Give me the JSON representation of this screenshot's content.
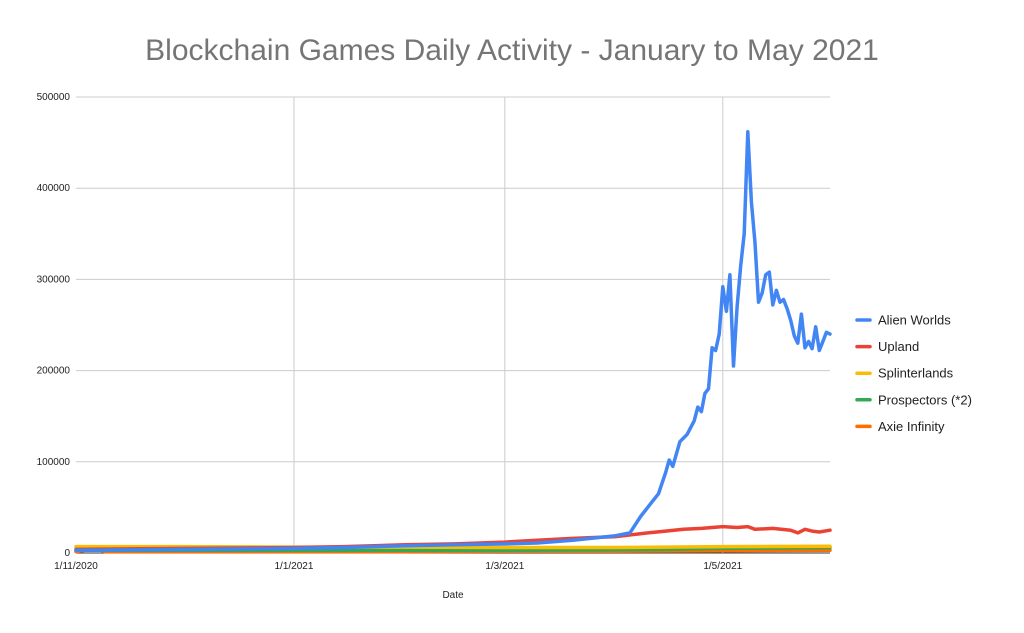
{
  "chart_data": {
    "type": "line",
    "title": "Blockchain Games Daily Activity - January to May 2021",
    "xlabel": "Date",
    "ylabel": "",
    "x_ticks": [
      "1/11/2020",
      "1/1/2021",
      "1/3/2021",
      "1/5/2021"
    ],
    "x_range": [
      "2020-11-01",
      "2021-05-31"
    ],
    "ylim": [
      0,
      500000
    ],
    "y_ticks": [
      0,
      100000,
      200000,
      300000,
      400000,
      500000
    ],
    "grid": true,
    "legend_position": "right",
    "series": [
      {
        "name": "Alien Worlds",
        "color": "#4285f4",
        "points": [
          [
            "2020-11-01",
            3000
          ],
          [
            "2020-12-01",
            4000
          ],
          [
            "2021-01-01",
            5000
          ],
          [
            "2021-01-15",
            6000
          ],
          [
            "2021-02-01",
            8000
          ],
          [
            "2021-02-15",
            9000
          ],
          [
            "2021-03-01",
            10000
          ],
          [
            "2021-03-10",
            11000
          ],
          [
            "2021-03-20",
            14000
          ],
          [
            "2021-04-01",
            19000
          ],
          [
            "2021-04-05",
            22000
          ],
          [
            "2021-04-08",
            40000
          ],
          [
            "2021-04-11",
            55000
          ],
          [
            "2021-04-13",
            65000
          ],
          [
            "2021-04-15",
            88000
          ],
          [
            "2021-04-16",
            102000
          ],
          [
            "2021-04-17",
            95000
          ],
          [
            "2021-04-19",
            122000
          ],
          [
            "2021-04-21",
            130000
          ],
          [
            "2021-04-23",
            145000
          ],
          [
            "2021-04-24",
            160000
          ],
          [
            "2021-04-25",
            155000
          ],
          [
            "2021-04-26",
            175000
          ],
          [
            "2021-04-27",
            180000
          ],
          [
            "2021-04-28",
            225000
          ],
          [
            "2021-04-29",
            222000
          ],
          [
            "2021-04-30",
            240000
          ],
          [
            "2021-05-01",
            292000
          ],
          [
            "2021-05-02",
            265000
          ],
          [
            "2021-05-03",
            305000
          ],
          [
            "2021-05-04",
            205000
          ],
          [
            "2021-05-05",
            270000
          ],
          [
            "2021-05-06",
            315000
          ],
          [
            "2021-05-07",
            350000
          ],
          [
            "2021-05-08",
            462000
          ],
          [
            "2021-05-09",
            385000
          ],
          [
            "2021-05-10",
            340000
          ],
          [
            "2021-05-11",
            275000
          ],
          [
            "2021-05-12",
            285000
          ],
          [
            "2021-05-13",
            305000
          ],
          [
            "2021-05-14",
            308000
          ],
          [
            "2021-05-15",
            272000
          ],
          [
            "2021-05-16",
            288000
          ],
          [
            "2021-05-17",
            275000
          ],
          [
            "2021-05-18",
            278000
          ],
          [
            "2021-05-19",
            268000
          ],
          [
            "2021-05-20",
            255000
          ],
          [
            "2021-05-21",
            238000
          ],
          [
            "2021-05-22",
            230000
          ],
          [
            "2021-05-23",
            262000
          ],
          [
            "2021-05-24",
            225000
          ],
          [
            "2021-05-25",
            232000
          ],
          [
            "2021-05-26",
            224000
          ],
          [
            "2021-05-27",
            248000
          ],
          [
            "2021-05-28",
            222000
          ],
          [
            "2021-05-29",
            232000
          ],
          [
            "2021-05-30",
            242000
          ],
          [
            "2021-05-31",
            240000
          ]
        ]
      },
      {
        "name": "Upland",
        "color": "#ea4335",
        "points": [
          [
            "2020-11-01",
            4000
          ],
          [
            "2020-12-01",
            5000
          ],
          [
            "2021-01-01",
            6000
          ],
          [
            "2021-01-15",
            7000
          ],
          [
            "2021-02-01",
            9000
          ],
          [
            "2021-02-15",
            10000
          ],
          [
            "2021-03-01",
            12000
          ],
          [
            "2021-03-10",
            14000
          ],
          [
            "2021-03-20",
            16000
          ],
          [
            "2021-04-01",
            18000
          ],
          [
            "2021-04-10",
            22000
          ],
          [
            "2021-04-15",
            24000
          ],
          [
            "2021-04-20",
            26000
          ],
          [
            "2021-04-25",
            27000
          ],
          [
            "2021-05-01",
            29000
          ],
          [
            "2021-05-05",
            28000
          ],
          [
            "2021-05-08",
            29000
          ],
          [
            "2021-05-10",
            26000
          ],
          [
            "2021-05-15",
            27000
          ],
          [
            "2021-05-20",
            25000
          ],
          [
            "2021-05-22",
            22000
          ],
          [
            "2021-05-24",
            26000
          ],
          [
            "2021-05-26",
            24000
          ],
          [
            "2021-05-28",
            23000
          ],
          [
            "2021-05-31",
            25000
          ]
        ]
      },
      {
        "name": "Splinterlands",
        "color": "#fbbc04",
        "points": [
          [
            "2020-11-01",
            7000
          ],
          [
            "2020-12-01",
            7000
          ],
          [
            "2021-01-01",
            6500
          ],
          [
            "2021-02-01",
            6500
          ],
          [
            "2021-03-01",
            6000
          ],
          [
            "2021-04-01",
            6000
          ],
          [
            "2021-05-01",
            7000
          ],
          [
            "2021-05-31",
            7500
          ]
        ]
      },
      {
        "name": "Prospectors (*2)",
        "color": "#34a853",
        "points": [
          [
            "2020-11-01",
            3000
          ],
          [
            "2020-12-01",
            3000
          ],
          [
            "2021-01-01",
            3000
          ],
          [
            "2021-02-01",
            3000
          ],
          [
            "2021-03-01",
            3000
          ],
          [
            "2021-04-01",
            3500
          ],
          [
            "2021-04-15",
            4000
          ],
          [
            "2021-05-01",
            5000
          ],
          [
            "2021-05-31",
            6000
          ]
        ]
      },
      {
        "name": "Axie Infinity",
        "color": "#ff6d01",
        "points": [
          [
            "2020-11-01",
            1500
          ],
          [
            "2020-11-07",
            5000
          ],
          [
            "2020-11-09",
            1500
          ],
          [
            "2020-12-01",
            1500
          ],
          [
            "2021-01-01",
            1500
          ],
          [
            "2021-02-01",
            1500
          ],
          [
            "2021-03-01",
            2000
          ],
          [
            "2021-04-01",
            2000
          ],
          [
            "2021-05-01",
            2500
          ],
          [
            "2021-05-31",
            3000
          ]
        ]
      }
    ]
  }
}
